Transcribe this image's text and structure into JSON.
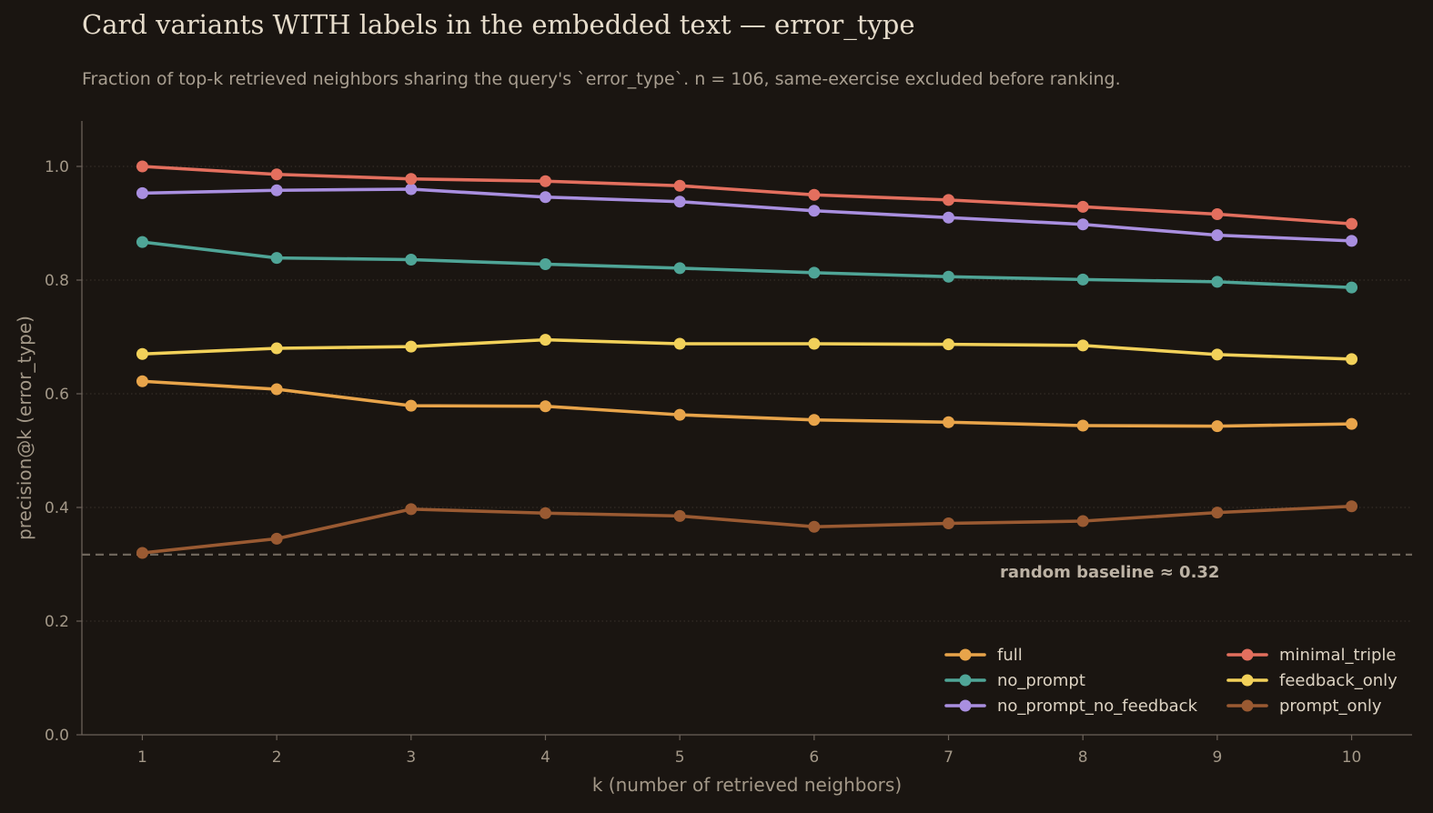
{
  "chart_data": {
    "type": "line",
    "title": "Card variants WITH labels in the embedded text — error_type",
    "subtitle": "Fraction of top-k retrieved neighbors sharing the query's `error_type`.  n = 106, same-exercise excluded before ranking.",
    "xlabel": "k (number of retrieved neighbors)",
    "ylabel": "precision@k  (error_type)",
    "x": [
      1,
      2,
      3,
      4,
      5,
      6,
      7,
      8,
      9,
      10
    ],
    "xlim": [
      0.55,
      10.45
    ],
    "ylim": [
      0,
      1.08
    ],
    "yticks": [
      "0.0",
      "0.2",
      "0.4",
      "0.6",
      "0.8",
      "1.0"
    ],
    "ytick_values": [
      0,
      0.2,
      0.4,
      0.6,
      0.8,
      1.0
    ],
    "grid": "horizontal dotted",
    "legend_position": "lower-right",
    "baseline": {
      "value": 0.317,
      "label": "random baseline ≈ 0.32",
      "color": "#6e655b"
    },
    "series": [
      {
        "name": "full",
        "color": "#e8a44a",
        "values": [
          0.622,
          0.608,
          0.579,
          0.578,
          0.563,
          0.554,
          0.55,
          0.544,
          0.543,
          0.547
        ]
      },
      {
        "name": "no_prompt",
        "color": "#4fa597",
        "values": [
          0.867,
          0.839,
          0.836,
          0.828,
          0.821,
          0.813,
          0.806,
          0.801,
          0.797,
          0.787
        ]
      },
      {
        "name": "no_prompt_no_feedback",
        "color": "#a98fe0",
        "values": [
          0.953,
          0.958,
          0.96,
          0.946,
          0.938,
          0.922,
          0.91,
          0.898,
          0.879,
          0.869
        ]
      },
      {
        "name": "minimal_triple",
        "color": "#e36f5e",
        "values": [
          1.0,
          0.986,
          0.978,
          0.974,
          0.966,
          0.95,
          0.941,
          0.929,
          0.916,
          0.899
        ]
      },
      {
        "name": "feedback_only",
        "color": "#f2d15a",
        "values": [
          0.67,
          0.68,
          0.683,
          0.695,
          0.688,
          0.688,
          0.687,
          0.685,
          0.669,
          0.661
        ]
      },
      {
        "name": "prompt_only",
        "color": "#9a5a32",
        "values": [
          0.32,
          0.345,
          0.397,
          0.39,
          0.385,
          0.366,
          0.372,
          0.376,
          0.391,
          0.402
        ]
      }
    ]
  }
}
